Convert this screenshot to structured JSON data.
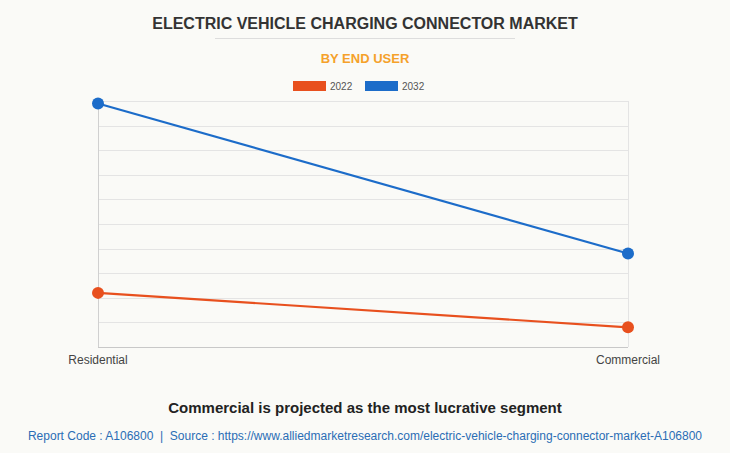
{
  "chart_data": {
    "type": "line",
    "title": "ELECTRIC VEHICLE CHARGING CONNECTOR MARKET",
    "subtitle": "BY END USER",
    "categories": [
      "Residential",
      "Commercial"
    ],
    "series": [
      {
        "name": "2022",
        "color": "#e8501e",
        "values": [
          2.2,
          0.8
        ]
      },
      {
        "name": "2032",
        "color": "#1c6cc9",
        "values": [
          9.9,
          3.8
        ]
      }
    ],
    "ylim": [
      0,
      10
    ],
    "yticks": [
      0,
      1,
      2,
      3,
      4,
      5,
      6,
      7,
      8,
      9,
      10
    ],
    "grid": true,
    "legend": "top",
    "tick_labels": "x",
    "marker": "circle",
    "annotations": [
      "Commercial is projected as the most lucrative segment",
      "Report Code : A106800  |  Source : https://www.alliedmarketresearch.com/electric-vehicle-charging-connector-market-A106800"
    ]
  }
}
